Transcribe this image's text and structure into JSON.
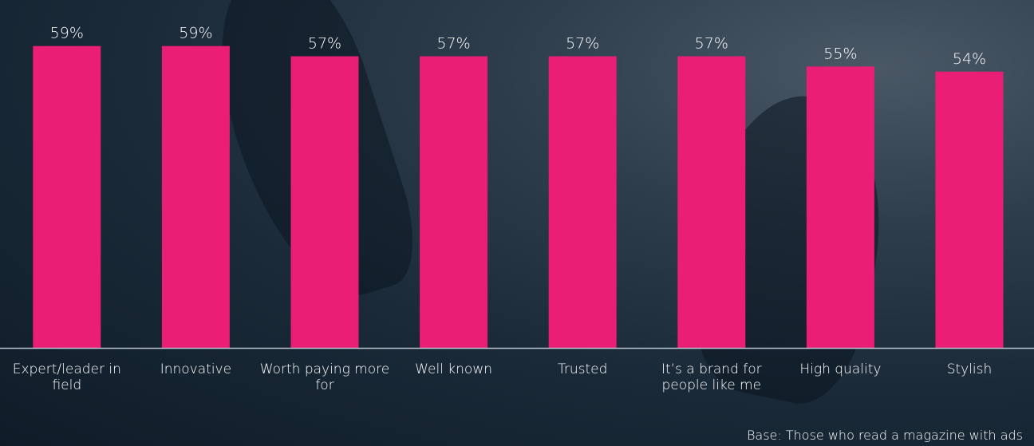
{
  "chart_data": {
    "type": "bar",
    "categories": [
      "Expert/leader in field",
      "Innovative",
      "Worth paying more for",
      "Well known",
      "Trusted",
      "It’s a brand for people like me",
      "High quality",
      "Stylish"
    ],
    "category_lines": [
      [
        "Expert/leader in",
        "field"
      ],
      [
        "Innovative"
      ],
      [
        "Worth paying more",
        "for"
      ],
      [
        "Well known"
      ],
      [
        "Trusted"
      ],
      [
        "It’s a brand for",
        "people like me"
      ],
      [
        "High quality"
      ],
      [
        "Stylish"
      ]
    ],
    "values": [
      59,
      59,
      57,
      57,
      57,
      57,
      55,
      54
    ],
    "value_labels": [
      "59%",
      "59%",
      "57%",
      "57%",
      "57%",
      "57%",
      "55%",
      "54%"
    ],
    "ylim": [
      0,
      68
    ],
    "grid": false,
    "bar_color": "#e91e74",
    "axis_color": "#b8c2cc"
  },
  "footnote": "Base: Those who read a magazine with ads"
}
